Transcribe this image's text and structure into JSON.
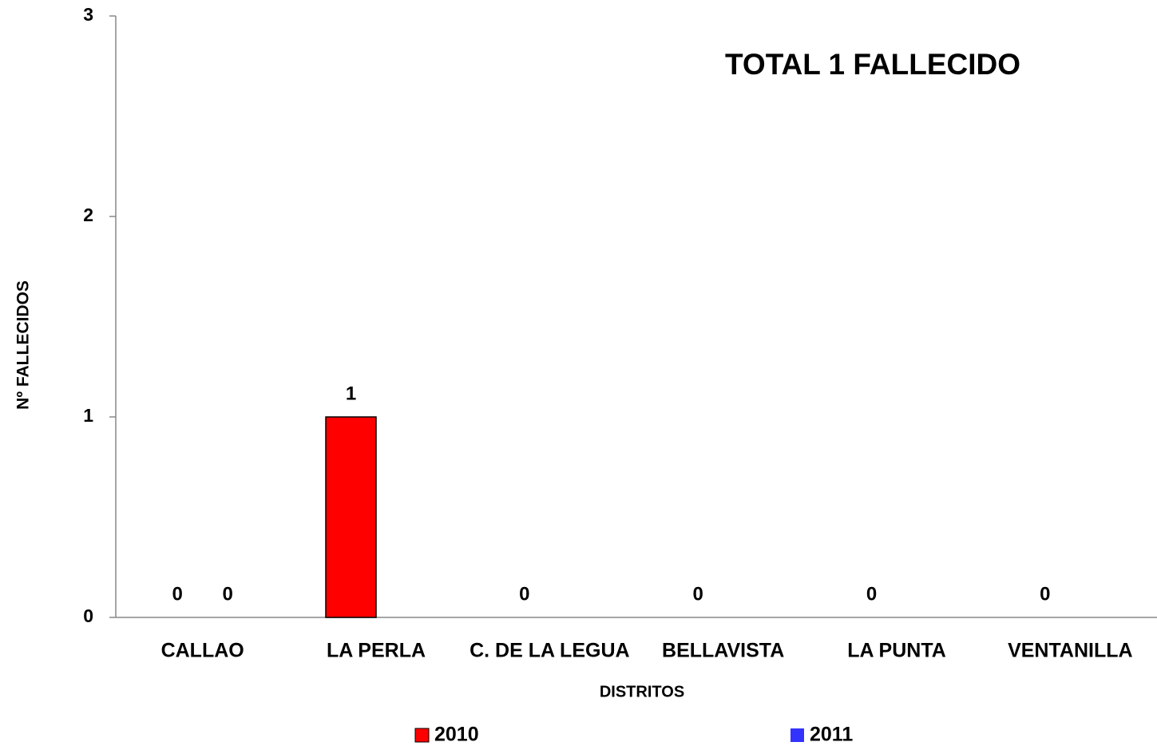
{
  "chart_data": {
    "type": "bar",
    "title": "TOTAL 1  FALLECIDO",
    "x_label": "DISTRITOS",
    "y_label": "Nº FALLECIDOS",
    "categories": [
      "CALLAO",
      "LA PERLA",
      "C. DE LA LEGUA",
      "BELLAVISTA",
      "LA PUNTA",
      "VENTANILLA"
    ],
    "series": [
      {
        "name": "2010",
        "color": "#ff0000",
        "values": [
          0,
          1,
          0,
          0,
          0,
          0
        ]
      },
      {
        "name": "2011",
        "color": "#3333ff",
        "values": [
          0,
          null,
          null,
          null,
          null,
          null
        ]
      }
    ],
    "ylim": [
      0,
      3
    ],
    "yticks": [
      0,
      1,
      2,
      3
    ],
    "grid": false,
    "legend": "bottom"
  }
}
